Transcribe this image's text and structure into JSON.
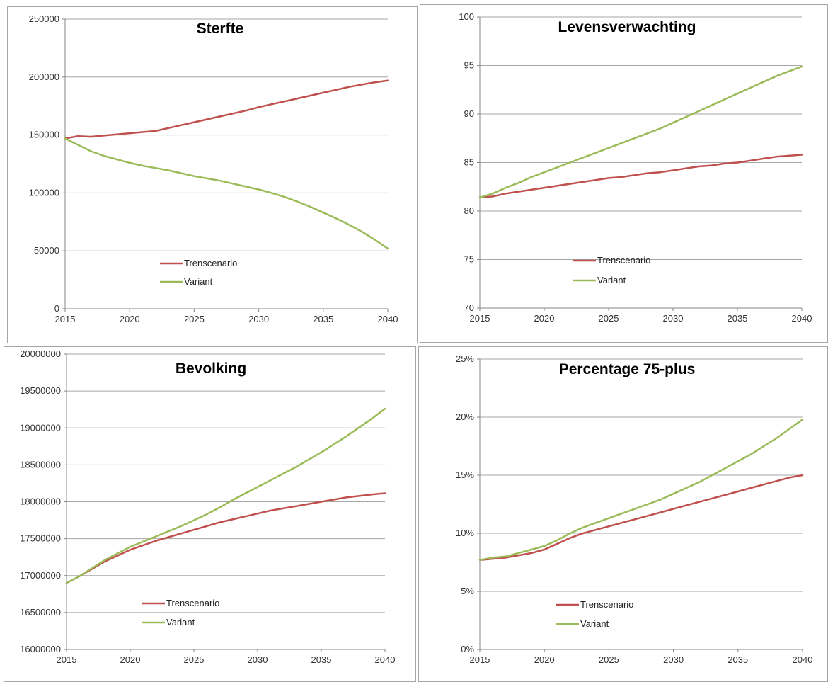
{
  "colors": {
    "Trenscenario": "#c0504d",
    "Variant": "#9bbb59",
    "grid": "#a6a6a6",
    "axis": "#868686"
  },
  "chart_data": [
    {
      "type": "line",
      "title": "Sterfte",
      "xlim": [
        2015,
        2040
      ],
      "ylim": [
        0,
        250000
      ],
      "x_ticks": [
        2015,
        2020,
        2025,
        2030,
        2035,
        2040
      ],
      "y_ticks": [
        0,
        50000,
        100000,
        150000,
        200000,
        250000
      ],
      "y_tick_labels": [
        "0",
        "50000",
        "100000",
        "150000",
        "200000",
        "250000"
      ],
      "legend": "center-bottom",
      "grid": true,
      "x": [
        2015,
        2016,
        2017,
        2018,
        2019,
        2020,
        2021,
        2022,
        2023,
        2024,
        2025,
        2026,
        2027,
        2028,
        2029,
        2030,
        2031,
        2032,
        2033,
        2034,
        2035,
        2036,
        2037,
        2038,
        2039,
        2040
      ],
      "series": [
        {
          "name": "Trenscenario",
          "values": [
            147000,
            149000,
            148500,
            149500,
            150500,
            151500,
            152500,
            153500,
            156000,
            158500,
            161000,
            163500,
            166000,
            168500,
            171000,
            174000,
            176500,
            179000,
            181500,
            184000,
            186500,
            189000,
            191500,
            193500,
            195500,
            197000
          ]
        },
        {
          "name": "Variant",
          "values": [
            147000,
            141500,
            136000,
            132000,
            129000,
            126000,
            123500,
            121500,
            119500,
            117000,
            114500,
            112500,
            110500,
            108000,
            105500,
            103000,
            100000,
            96500,
            92500,
            88000,
            83000,
            78000,
            72500,
            66500,
            59500,
            52000
          ]
        }
      ]
    },
    {
      "type": "line",
      "title": "Levensverwachting",
      "xlim": [
        2015,
        2040
      ],
      "ylim": [
        70,
        100
      ],
      "x_ticks": [
        2015,
        2020,
        2025,
        2030,
        2035,
        2040
      ],
      "y_ticks": [
        70,
        75,
        80,
        85,
        90,
        95,
        100
      ],
      "y_tick_labels": [
        "70",
        "75",
        "80",
        "85",
        "90",
        "95",
        "100"
      ],
      "legend": "center-bottom",
      "grid": true,
      "x": [
        2015,
        2016,
        2017,
        2018,
        2019,
        2020,
        2021,
        2022,
        2023,
        2024,
        2025,
        2026,
        2027,
        2028,
        2029,
        2030,
        2031,
        2032,
        2033,
        2034,
        2035,
        2036,
        2037,
        2038,
        2039,
        2040
      ],
      "series": [
        {
          "name": "Trenscenario",
          "values": [
            81.4,
            81.5,
            81.8,
            82.0,
            82.2,
            82.4,
            82.6,
            82.8,
            83.0,
            83.2,
            83.4,
            83.5,
            83.7,
            83.9,
            84.0,
            84.2,
            84.4,
            84.6,
            84.7,
            84.9,
            85.0,
            85.2,
            85.4,
            85.6,
            85.7,
            85.8
          ]
        },
        {
          "name": "Variant",
          "values": [
            81.4,
            81.8,
            82.4,
            82.9,
            83.5,
            84.0,
            84.5,
            85.0,
            85.5,
            86.0,
            86.5,
            87.0,
            87.5,
            88.0,
            88.5,
            89.1,
            89.7,
            90.3,
            90.9,
            91.5,
            92.1,
            92.7,
            93.3,
            93.9,
            94.4,
            94.9
          ]
        }
      ]
    },
    {
      "type": "line",
      "title": "Bevolking",
      "xlim": [
        2015,
        2040
      ],
      "ylim": [
        16000000,
        20000000
      ],
      "x_ticks": [
        2015,
        2020,
        2025,
        2030,
        2035,
        2040
      ],
      "y_ticks": [
        16000000,
        16500000,
        17000000,
        17500000,
        18000000,
        18500000,
        19000000,
        19500000,
        20000000
      ],
      "y_tick_labels": [
        "16000000",
        "16500000",
        "17000000",
        "17500000",
        "18000000",
        "18500000",
        "19000000",
        "19500000",
        "20000000"
      ],
      "legend": "center-bottom",
      "grid": true,
      "x": [
        2015,
        2016,
        2017,
        2018,
        2019,
        2020,
        2021,
        2022,
        2023,
        2024,
        2025,
        2026,
        2027,
        2028,
        2029,
        2030,
        2031,
        2032,
        2033,
        2034,
        2035,
        2036,
        2037,
        2038,
        2039,
        2040
      ],
      "series": [
        {
          "name": "Trenscenario",
          "values": [
            16900000,
            16990000,
            17090000,
            17190000,
            17270000,
            17350000,
            17410000,
            17470000,
            17520000,
            17570000,
            17620000,
            17670000,
            17720000,
            17760000,
            17800000,
            17840000,
            17880000,
            17910000,
            17940000,
            17970000,
            18000000,
            18030000,
            18060000,
            18080000,
            18100000,
            18115000
          ]
        },
        {
          "name": "Variant",
          "values": [
            16900000,
            16990000,
            17100000,
            17210000,
            17300000,
            17390000,
            17460000,
            17530000,
            17600000,
            17670000,
            17750000,
            17830000,
            17920000,
            18020000,
            18110000,
            18200000,
            18290000,
            18380000,
            18470000,
            18570000,
            18670000,
            18780000,
            18890000,
            19010000,
            19130000,
            19260000
          ]
        }
      ]
    },
    {
      "type": "line",
      "title": "Percentage 75-plus",
      "xlim": [
        2015,
        2040
      ],
      "ylim": [
        0,
        25
      ],
      "x_ticks": [
        2015,
        2020,
        2025,
        2030,
        2035,
        2040
      ],
      "y_ticks": [
        0,
        5,
        10,
        15,
        20,
        25
      ],
      "y_tick_labels": [
        "0%",
        "5%",
        "10%",
        "15%",
        "20%",
        "25%"
      ],
      "legend": "center-bottom",
      "grid": true,
      "x": [
        2015,
        2016,
        2017,
        2018,
        2019,
        2020,
        2021,
        2022,
        2023,
        2024,
        2025,
        2026,
        2027,
        2028,
        2029,
        2030,
        2031,
        2032,
        2033,
        2034,
        2035,
        2036,
        2037,
        2038,
        2039,
        2040
      ],
      "series": [
        {
          "name": "Trenscenario",
          "values": [
            7.7,
            7.8,
            7.9,
            8.1,
            8.3,
            8.6,
            9.1,
            9.6,
            10.0,
            10.3,
            10.6,
            10.9,
            11.2,
            11.5,
            11.8,
            12.1,
            12.4,
            12.7,
            13.0,
            13.3,
            13.6,
            13.9,
            14.2,
            14.5,
            14.8,
            15.0
          ]
        },
        {
          "name": "Variant",
          "values": [
            7.7,
            7.9,
            8.0,
            8.3,
            8.6,
            8.9,
            9.4,
            10.0,
            10.5,
            10.9,
            11.3,
            11.7,
            12.1,
            12.5,
            12.9,
            13.4,
            13.9,
            14.4,
            15.0,
            15.6,
            16.2,
            16.8,
            17.5,
            18.2,
            19.0,
            19.8
          ]
        }
      ]
    }
  ]
}
